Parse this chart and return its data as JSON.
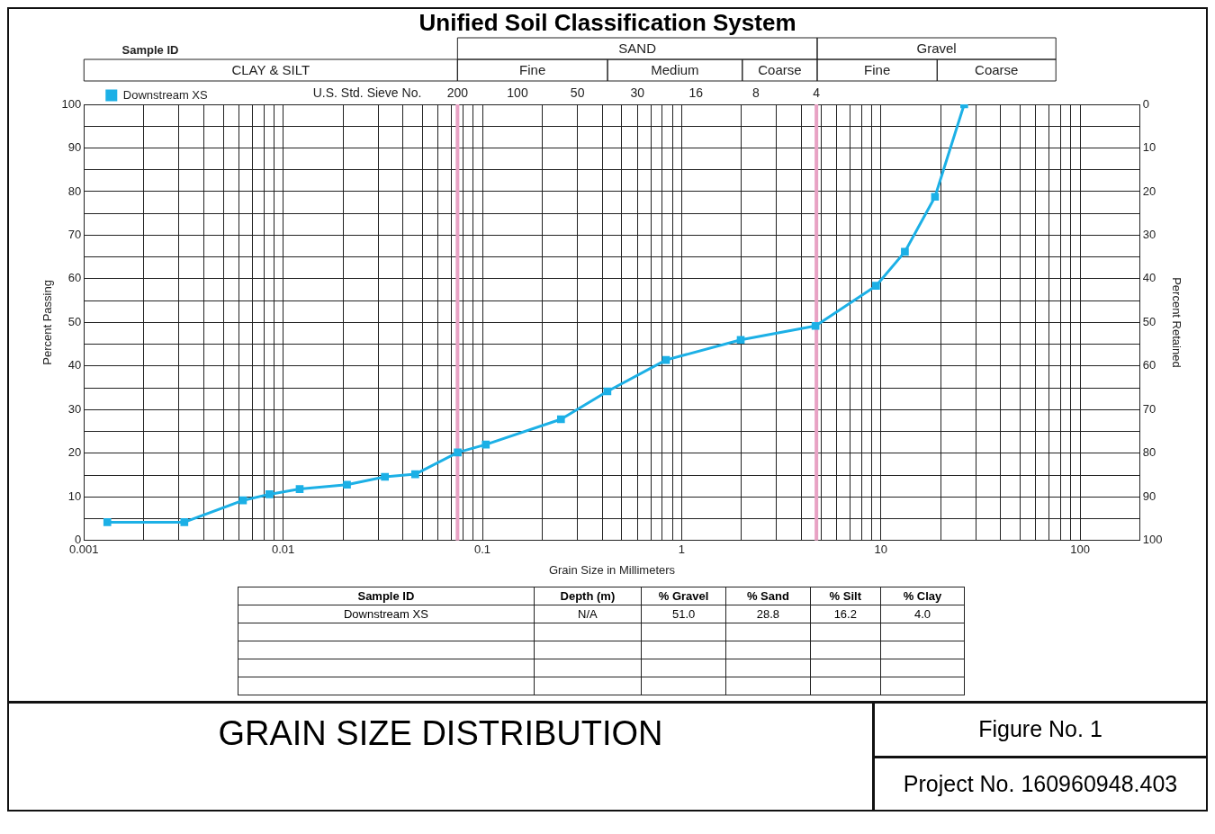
{
  "chart_data": {
    "type": "line",
    "title": "Unified Soil Classification System",
    "subtitle": "GRAIN SIZE DISTRIBUTION",
    "xlabel": "Grain Size in Millimeters",
    "ylabel": "Percent Passing",
    "y2label": "Percent Retained",
    "legend_title": "Sample ID",
    "legend": "top left",
    "marker": "square",
    "line_style": "solid",
    "log": "x",
    "grid": true,
    "x": [
      0.00131,
      0.00319,
      0.00628,
      0.00853,
      0.0121,
      0.0209,
      0.0324,
      0.046,
      0.0752,
      0.104,
      0.248,
      0.424,
      0.835,
      1.98,
      4.7,
      9.46,
      13.2,
      18.7,
      26.2
    ],
    "series": [
      {
        "name": "Downstream XS",
        "color": "#1cb0e6",
        "values": [
          4.2,
          4.2,
          9.2,
          10.6,
          11.8,
          12.8,
          14.6,
          15.2,
          20.2,
          22,
          27.8,
          34.2,
          41.4,
          46,
          49.2,
          58.4,
          66.2,
          78.8,
          100
        ]
      }
    ],
    "xlim": [
      0.001,
      200
    ],
    "xticks": [
      0.001,
      {
        "value": 0.002,
        "label": null
      },
      {
        "value": 0.003,
        "label": null
      },
      {
        "value": 0.004,
        "label": null
      },
      {
        "value": 0.005,
        "label": null
      },
      {
        "value": 0.006,
        "label": null
      },
      {
        "value": 0.007,
        "label": null
      },
      {
        "value": 0.008,
        "label": null
      },
      {
        "value": 0.009,
        "label": null
      },
      0.01,
      {
        "value": 0.02,
        "label": null
      },
      {
        "value": 0.03,
        "label": null
      },
      {
        "value": 0.04,
        "label": null
      },
      {
        "value": 0.05,
        "label": null
      },
      {
        "value": 0.06,
        "label": null
      },
      {
        "value": 0.07,
        "label": null
      },
      {
        "value": 0.08,
        "label": null
      },
      {
        "value": 0.09,
        "label": null
      },
      0.1,
      {
        "value": 0.2,
        "label": null
      },
      {
        "value": 0.3,
        "label": null
      },
      {
        "value": 0.4,
        "label": null
      },
      {
        "value": 0.5,
        "label": null
      },
      {
        "value": 0.6,
        "label": null
      },
      {
        "value": 0.7,
        "label": null
      },
      {
        "value": 0.8,
        "label": null
      },
      {
        "value": 0.9,
        "label": null
      },
      1,
      {
        "value": 2,
        "label": null
      },
      {
        "value": 3,
        "label": null
      },
      {
        "value": 4,
        "label": null
      },
      {
        "value": 5,
        "label": null
      },
      {
        "value": 6,
        "label": null
      },
      {
        "value": 7,
        "label": null
      },
      {
        "value": 8,
        "label": null
      },
      {
        "value": 9,
        "label": null
      },
      10,
      {
        "value": 20,
        "label": null
      },
      {
        "value": 30,
        "label": null
      },
      {
        "value": 40,
        "label": null
      },
      {
        "value": 50,
        "label": null
      },
      {
        "value": 60,
        "label": null
      },
      {
        "value": 70,
        "label": null
      },
      {
        "value": 80,
        "label": null
      },
      {
        "value": 90,
        "label": null
      },
      100
    ],
    "ylim": [
      0,
      100
    ],
    "yticks": [
      0,
      {
        "value": 5,
        "label": null
      },
      10,
      {
        "value": 15,
        "label": null
      },
      20,
      {
        "value": 25,
        "label": null
      },
      30,
      {
        "value": 35,
        "label": null
      },
      40,
      {
        "value": 45,
        "label": null
      },
      50,
      {
        "value": 55,
        "label": null
      },
      60,
      {
        "value": 65,
        "label": null
      },
      70,
      {
        "value": 75,
        "label": null
      },
      80,
      {
        "value": 85,
        "label": null
      },
      90,
      {
        "value": 95,
        "label": null
      },
      100
    ],
    "y2lim": [
      100,
      0
    ],
    "y2ticks": [
      0,
      10,
      20,
      30,
      40,
      50,
      60,
      70,
      80,
      90,
      100
    ],
    "ref_lines": [
      {
        "axis": "x",
        "value": 0.075,
        "color": "#e8a2c4"
      },
      {
        "axis": "x",
        "value": 4.75,
        "color": "#e8a2c4"
      }
    ],
    "annotations": [
      "SAND",
      "Gravel",
      "CLAY & SILT",
      "Fine",
      "Medium",
      "Coarse",
      "Fine",
      "Coarse",
      "U.S. Std. Sieve No.",
      "200",
      "100",
      "50",
      "30",
      "16",
      "8",
      "4",
      "Sample ID",
      "Depth (m)",
      "% Gravel",
      "% Sand",
      "% Silt",
      "% Clay",
      "Downstream XS",
      "N/A",
      "51.0",
      "28.8",
      "16.2",
      "4.0",
      "Figure No. 1",
      "Project No. 160960948.403"
    ]
  }
}
